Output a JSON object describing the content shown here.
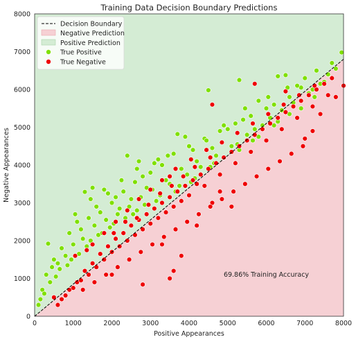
{
  "chart_data": {
    "type": "scatter",
    "title": "Training Data Decision Boundary Predictions",
    "xlabel": "Positive Appearances",
    "ylabel": "Negative Appearances",
    "xlim": [
      0,
      8000
    ],
    "ylim": [
      0,
      8000
    ],
    "xticks": [
      0,
      1000,
      2000,
      3000,
      4000,
      5000,
      6000,
      7000,
      8000
    ],
    "yticks": [
      0,
      1000,
      2000,
      3000,
      4000,
      5000,
      6000,
      7000,
      8000
    ],
    "grid": false,
    "legend_position": "top-left",
    "decision_boundary": {
      "x": [
        0,
        8000
      ],
      "y": [
        0,
        6800
      ]
    },
    "regions": [
      {
        "name": "Negative Prediction",
        "color": "#f6d0d4",
        "side": "below-boundary"
      },
      {
        "name": "Positive Prediction",
        "color": "#d4ecd4",
        "side": "above-boundary"
      }
    ],
    "legend": [
      {
        "label": "Decision Boundary",
        "kind": "line",
        "color": "#000000"
      },
      {
        "label": "Negative Prediction",
        "kind": "patch",
        "color": "#f6d0d4"
      },
      {
        "label": "Positive Prediction",
        "kind": "patch",
        "color": "#d4ecd4"
      },
      {
        "label": "True Positive",
        "kind": "point",
        "color": "#7fe000"
      },
      {
        "label": "True Negative",
        "kind": "point",
        "color": "#ee0000"
      }
    ],
    "series": [
      {
        "name": "True Positive",
        "color": "#7fe000",
        "points": [
          [
            7950,
            6980
          ],
          [
            6300,
            6350
          ],
          [
            6500,
            6380
          ],
          [
            5300,
            6250
          ],
          [
            4500,
            5980
          ],
          [
            6900,
            6050
          ],
          [
            7200,
            6000
          ],
          [
            7500,
            6200
          ],
          [
            5800,
            5700
          ],
          [
            6200,
            5600
          ],
          [
            3700,
            4820
          ],
          [
            3900,
            4750
          ],
          [
            2400,
            4250
          ],
          [
            2700,
            4100
          ],
          [
            3200,
            4150
          ],
          [
            1500,
            3400
          ],
          [
            1300,
            3290
          ],
          [
            1800,
            3350
          ],
          [
            1900,
            3250
          ],
          [
            350,
            1920
          ],
          [
            2100,
            3150
          ],
          [
            2600,
            3550
          ],
          [
            3000,
            3800
          ],
          [
            4100,
            4400
          ],
          [
            4800,
            4900
          ],
          [
            5200,
            5100
          ],
          [
            5600,
            5300
          ],
          [
            6600,
            5800
          ],
          [
            7300,
            6500
          ],
          [
            7700,
            6700
          ],
          [
            900,
            2200
          ],
          [
            1100,
            2500
          ],
          [
            1600,
            2900
          ],
          [
            2000,
            3000
          ],
          [
            2300,
            3300
          ],
          [
            2800,
            3700
          ],
          [
            3300,
            4000
          ],
          [
            3600,
            4300
          ],
          [
            4400,
            4700
          ],
          [
            5000,
            4950
          ],
          [
            5400,
            5200
          ],
          [
            6000,
            5500
          ],
          [
            6800,
            6100
          ],
          [
            7000,
            6300
          ],
          [
            500,
            1500
          ],
          [
            700,
            1800
          ],
          [
            1200,
            2300
          ],
          [
            1400,
            2600
          ],
          [
            1700,
            2750
          ],
          [
            2200,
            2850
          ],
          [
            2500,
            3100
          ],
          [
            2900,
            3400
          ],
          [
            3400,
            3600
          ],
          [
            3800,
            3900
          ],
          [
            4200,
            4100
          ],
          [
            4600,
            4450
          ],
          [
            5500,
            4800
          ],
          [
            5900,
            5050
          ],
          [
            6400,
            5450
          ],
          [
            7100,
            5900
          ],
          [
            7600,
            6400
          ],
          [
            300,
            1100
          ],
          [
            450,
            1300
          ],
          [
            600,
            1400
          ],
          [
            800,
            1600
          ],
          [
            1000,
            1900
          ],
          [
            1250,
            2050
          ],
          [
            1550,
            2400
          ],
          [
            1850,
            2550
          ],
          [
            2150,
            2700
          ],
          [
            2450,
            2900
          ],
          [
            2750,
            3150
          ],
          [
            3050,
            3350
          ],
          [
            3500,
            3500
          ],
          [
            3950,
            3750
          ],
          [
            4300,
            3950
          ],
          [
            4700,
            4250
          ],
          [
            5100,
            4500
          ],
          [
            5700,
            4950
          ],
          [
            6100,
            5250
          ],
          [
            6700,
            5650
          ],
          [
            7400,
            6150
          ],
          [
            200,
            700
          ],
          [
            150,
            450
          ],
          [
            400,
            900
          ],
          [
            650,
            1250
          ],
          [
            950,
            1500
          ],
          [
            1350,
            1850
          ],
          [
            1650,
            2150
          ],
          [
            1950,
            2350
          ],
          [
            2350,
            2600
          ],
          [
            2650,
            2800
          ],
          [
            3150,
            3050
          ],
          [
            3650,
            3300
          ],
          [
            4050,
            3550
          ],
          [
            4550,
            3950
          ],
          [
            5300,
            4400
          ],
          [
            5800,
            4750
          ],
          [
            6300,
            5150
          ],
          [
            6900,
            5500
          ],
          [
            7800,
            6550
          ],
          [
            100,
            300
          ],
          [
            250,
            600
          ],
          [
            550,
            1050
          ],
          [
            850,
            1350
          ],
          [
            1150,
            1650
          ],
          [
            1450,
            2000
          ],
          [
            1750,
            2200
          ],
          [
            2050,
            2450
          ],
          [
            2550,
            2700
          ],
          [
            2850,
            2950
          ],
          [
            3250,
            3200
          ],
          [
            3750,
            3450
          ],
          [
            4150,
            3650
          ],
          [
            4650,
            4050
          ],
          [
            5250,
            4550
          ],
          [
            5650,
            4650
          ],
          [
            6200,
            5050
          ],
          [
            6600,
            5350
          ],
          [
            7250,
            5800
          ],
          [
            1050,
            2700
          ],
          [
            1450,
            3100
          ],
          [
            2250,
            3600
          ],
          [
            2650,
            3900
          ],
          [
            3100,
            4050
          ],
          [
            3450,
            4250
          ],
          [
            4000,
            4500
          ],
          [
            4450,
            4650
          ],
          [
            4900,
            5050
          ],
          [
            5450,
            5500
          ],
          [
            6050,
            5800
          ],
          [
            6550,
            6050
          ]
        ]
      },
      {
        "name": "True Negative",
        "color": "#ee0000",
        "points": [
          [
            4600,
            5600
          ],
          [
            5700,
            6150
          ],
          [
            6500,
            5950
          ],
          [
            8000,
            6100
          ],
          [
            7800,
            5800
          ],
          [
            7400,
            5350
          ],
          [
            7200,
            4900
          ],
          [
            7000,
            4700
          ],
          [
            3500,
            3700
          ],
          [
            4200,
            3500
          ],
          [
            4800,
            3300
          ],
          [
            4600,
            3000
          ],
          [
            5100,
            2900
          ],
          [
            3300,
            1900
          ],
          [
            4200,
            2400
          ],
          [
            3800,
            1600
          ],
          [
            3600,
            1200
          ],
          [
            3500,
            1000
          ],
          [
            2800,
            840
          ],
          [
            2000,
            1100
          ],
          [
            500,
            500
          ],
          [
            700,
            450
          ],
          [
            900,
            700
          ],
          [
            1100,
            900
          ],
          [
            1300,
            1200
          ],
          [
            1500,
            1400
          ],
          [
            1700,
            1650
          ],
          [
            1900,
            1850
          ],
          [
            2100,
            2050
          ],
          [
            2300,
            2200
          ],
          [
            2500,
            2400
          ],
          [
            2700,
            2550
          ],
          [
            2900,
            2700
          ],
          [
            3100,
            2850
          ],
          [
            3300,
            3000
          ],
          [
            3500,
            3150
          ],
          [
            3700,
            3300
          ],
          [
            3900,
            3450
          ],
          [
            4100,
            3600
          ],
          [
            4300,
            3750
          ],
          [
            4500,
            3900
          ],
          [
            4700,
            4050
          ],
          [
            4900,
            4200
          ],
          [
            5100,
            4350
          ],
          [
            5300,
            4500
          ],
          [
            5500,
            4650
          ],
          [
            5700,
            4800
          ],
          [
            5900,
            4950
          ],
          [
            6100,
            5100
          ],
          [
            6300,
            5250
          ],
          [
            6500,
            5400
          ],
          [
            6700,
            5550
          ],
          [
            6900,
            5700
          ],
          [
            7100,
            5850
          ],
          [
            7300,
            6000
          ],
          [
            7500,
            6150
          ],
          [
            7700,
            6300
          ],
          [
            600,
            300
          ],
          [
            800,
            550
          ],
          [
            1000,
            750
          ],
          [
            1200,
            950
          ],
          [
            1400,
            1100
          ],
          [
            1600,
            1300
          ],
          [
            1800,
            1500
          ],
          [
            2000,
            1700
          ],
          [
            2200,
            1850
          ],
          [
            2400,
            2000
          ],
          [
            2600,
            2150
          ],
          [
            2800,
            2300
          ],
          [
            3000,
            2450
          ],
          [
            3200,
            2600
          ],
          [
            3400,
            2750
          ],
          [
            3600,
            2900
          ],
          [
            3800,
            3050
          ],
          [
            4000,
            3200
          ],
          [
            4400,
            3450
          ],
          [
            4800,
            3750
          ],
          [
            5200,
            4050
          ],
          [
            5600,
            4350
          ],
          [
            6000,
            4650
          ],
          [
            6400,
            4950
          ],
          [
            6800,
            5250
          ],
          [
            7200,
            5550
          ],
          [
            7600,
            5850
          ],
          [
            1500,
            1900
          ],
          [
            1800,
            2200
          ],
          [
            2100,
            2500
          ],
          [
            2400,
            2800
          ],
          [
            2700,
            3100
          ],
          [
            3000,
            3350
          ],
          [
            3300,
            3600
          ],
          [
            3650,
            3900
          ],
          [
            4050,
            4150
          ],
          [
            4450,
            4400
          ],
          [
            4850,
            4600
          ],
          [
            5250,
            4850
          ],
          [
            5650,
            5100
          ],
          [
            6050,
            5350
          ],
          [
            6450,
            5600
          ],
          [
            6850,
            5850
          ],
          [
            7250,
            6100
          ],
          [
            1250,
            700
          ],
          [
            1550,
            900
          ],
          [
            1850,
            1100
          ],
          [
            2150,
            1300
          ],
          [
            2450,
            1500
          ],
          [
            2750,
            1700
          ],
          [
            3050,
            1900
          ],
          [
            3350,
            2100
          ],
          [
            3650,
            2300
          ],
          [
            3950,
            2500
          ],
          [
            4250,
            2700
          ],
          [
            4550,
            2900
          ],
          [
            4850,
            3100
          ],
          [
            5150,
            3300
          ],
          [
            5450,
            3500
          ],
          [
            5750,
            3700
          ],
          [
            6050,
            3900
          ],
          [
            6350,
            4100
          ],
          [
            6650,
            4300
          ],
          [
            6950,
            4500
          ],
          [
            1050,
            1600
          ],
          [
            1350,
            1750
          ],
          [
            2050,
            2200
          ],
          [
            2350,
            2500
          ],
          [
            2650,
            2600
          ],
          [
            2950,
            2950
          ],
          [
            3250,
            3250
          ],
          [
            3550,
            3450
          ],
          [
            3850,
            3700
          ],
          [
            4150,
            3950
          ],
          [
            4550,
            4200
          ]
        ]
      }
    ],
    "annotations": [
      {
        "text": "69.86% Training Accuracy",
        "x": 6000,
        "y": 1050
      }
    ]
  }
}
